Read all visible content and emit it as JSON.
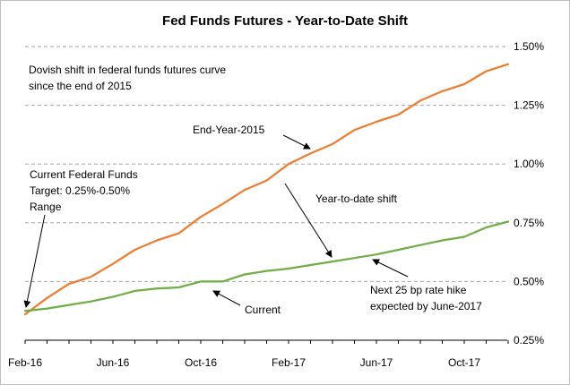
{
  "chart_data": {
    "type": "line",
    "title": "Fed Funds Futures - Year-to-Date Shift",
    "xlabel": "",
    "ylabel": "",
    "x_tick_labels": [
      "Feb-16",
      "Jun-16",
      "Oct-16",
      "Feb-17",
      "Jun-17",
      "Oct-17"
    ],
    "y_tick_labels": [
      "0.25%",
      "0.50%",
      "0.75%",
      "1.00%",
      "1.25%",
      "1.50%"
    ],
    "ylim": [
      0.25,
      1.5
    ],
    "y_ticks": [
      0.25,
      0.5,
      0.75,
      1.0,
      1.25,
      1.5
    ],
    "grid": "horizontal dashed",
    "months": [
      "Feb-16",
      "Mar-16",
      "Apr-16",
      "May-16",
      "Jun-16",
      "Jul-16",
      "Aug-16",
      "Sep-16",
      "Oct-16",
      "Nov-16",
      "Dec-16",
      "Jan-17",
      "Feb-17",
      "Mar-17",
      "Apr-17",
      "May-17",
      "Jun-17",
      "Jul-17",
      "Aug-17",
      "Sep-17",
      "Oct-17",
      "Nov-17",
      "Dec-17"
    ],
    "series": [
      {
        "label_text": "End-Year-2015",
        "color": "#ED7D31",
        "values": [
          0.36,
          0.43,
          0.49,
          0.52,
          0.575,
          0.635,
          0.675,
          0.705,
          0.775,
          0.83,
          0.89,
          0.93,
          1.0,
          1.045,
          1.085,
          1.145,
          1.18,
          1.21,
          1.27,
          1.31,
          1.34,
          1.395,
          1.425
        ]
      },
      {
        "label_text": "Current",
        "color": "#70AD47",
        "values": [
          0.375,
          0.385,
          0.4,
          0.415,
          0.435,
          0.46,
          0.47,
          0.475,
          0.5,
          0.5,
          0.53,
          0.545,
          0.555,
          0.57,
          0.585,
          0.6,
          0.615,
          0.635,
          0.655,
          0.675,
          0.69,
          0.73,
          0.755
        ]
      }
    ],
    "annotations": {
      "dovish_line1": "Dovish shift in federal funds futures curve",
      "dovish_line2": "since the end of 2015",
      "target_line1": "Current Federal Funds",
      "target_line2": "Target: 0.25%-0.50%",
      "target_line3": "Range",
      "ytd_shift": "Year-to-date shift",
      "hike_line1": "Next 25 bp rate hike",
      "hike_line2": "expected by June-2017"
    }
  }
}
